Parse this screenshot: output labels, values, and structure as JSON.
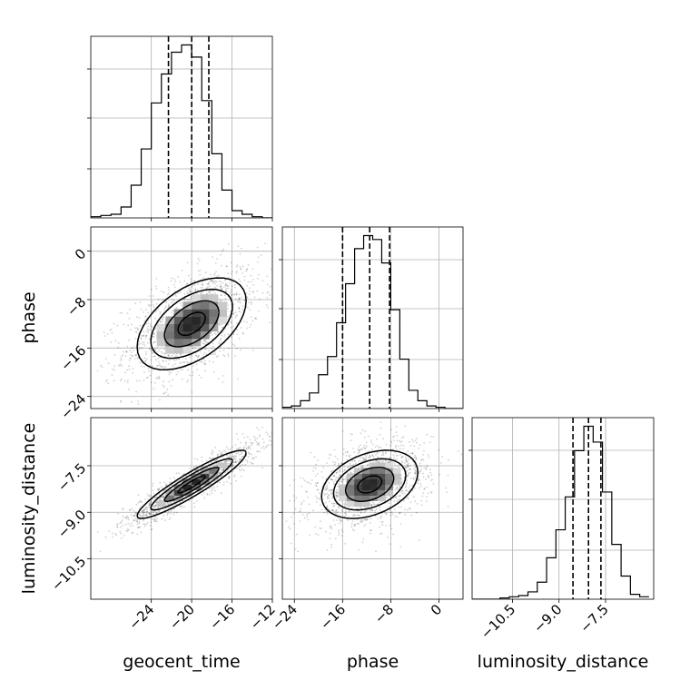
{
  "chart_data": {
    "type": "corner",
    "parameters": [
      "geocent_time",
      "phase",
      "luminosity_distance"
    ],
    "axis_labels": {
      "x": [
        "geocent_time",
        "phase",
        "luminosity_distance"
      ],
      "y": [
        "phase",
        "luminosity_distance"
      ]
    },
    "ranges": {
      "geocent_time": [
        -30,
        -12
      ],
      "phase": [
        -26,
        4
      ],
      "luminosity_distance": [
        -11.8,
        -5.95
      ]
    },
    "ticks": {
      "geocent_time": [
        -24,
        -20,
        -16,
        -12
      ],
      "phase": [
        -24,
        -16,
        -8,
        0
      ],
      "luminosity_distance": [
        -10.5,
        -9.0,
        -7.5
      ]
    },
    "tick_labels": {
      "geocent_time": [
        "−24",
        "−20",
        "−16",
        "−12"
      ],
      "phase": [
        "−24",
        "−16",
        "−8",
        "0"
      ],
      "luminosity_distance": [
        "−10.5",
        "−9.0",
        "−7.5"
      ]
    },
    "grid": true,
    "quantiles": {
      "geocent_time": [
        -22.3,
        -20.0,
        -18.3
      ],
      "phase": [
        -16.0,
        -11.5,
        -8.2
      ],
      "luminosity_distance": [
        -8.55,
        -8.05,
        -7.65
      ]
    },
    "histograms": {
      "geocent_time": {
        "edges": [
          -30,
          -29,
          -28,
          -27,
          -26,
          -25,
          -24,
          -23,
          -22,
          -21,
          -20,
          -19,
          -18,
          -17,
          -16,
          -15,
          -14,
          -13,
          -12
        ],
        "counts": [
          1,
          2,
          3,
          9,
          27,
          57,
          95,
          119,
          137,
          143,
          133,
          97,
          53,
          23,
          6,
          3,
          1,
          0
        ]
      },
      "phase": {
        "edges": [
          -26,
          -24.5,
          -23,
          -21.5,
          -20,
          -18.5,
          -17,
          -15.5,
          -14,
          -12.5,
          -11,
          -9.5,
          -8,
          -6.5,
          -5,
          -3.5,
          -2,
          -0.5,
          1,
          2.5,
          4
        ],
        "counts": [
          1,
          2,
          6,
          12,
          26,
          40,
          66,
          96,
          123,
          133,
          130,
          112,
          76,
          38,
          14,
          6,
          2,
          1,
          0,
          0
        ]
      },
      "luminosity_distance": {
        "edges": [
          -11.8,
          -11.5,
          -11.2,
          -10.9,
          -10.6,
          -10.3,
          -10.0,
          -9.7,
          -9.4,
          -9.1,
          -8.8,
          -8.5,
          -8.2,
          -7.9,
          -7.6,
          -7.3,
          -7.0,
          -6.7,
          -6.4,
          -6.1
        ],
        "counts": [
          0,
          0,
          0,
          1,
          2,
          3,
          6,
          14,
          34,
          57,
          84,
          122,
          142,
          129,
          88,
          45,
          19,
          4,
          2
        ]
      }
    },
    "pairs": [
      {
        "x": "geocent_time",
        "y": "phase",
        "center": [
          -20,
          -12
        ],
        "sd": [
          2.7,
          3.8
        ],
        "rho": 0.5
      },
      {
        "x": "geocent_time",
        "y": "luminosity_distance",
        "center": [
          -20,
          -8.1
        ],
        "sd": [
          2.7,
          0.55
        ],
        "rho": 0.92
      },
      {
        "x": "phase",
        "y": "luminosity_distance",
        "center": [
          -11.5,
          -8.1
        ],
        "sd": [
          4.0,
          0.55
        ],
        "rho": 0.35
      }
    ],
    "levels_sigma": [
      0.5,
      1.0,
      1.5,
      2.0
    ]
  }
}
